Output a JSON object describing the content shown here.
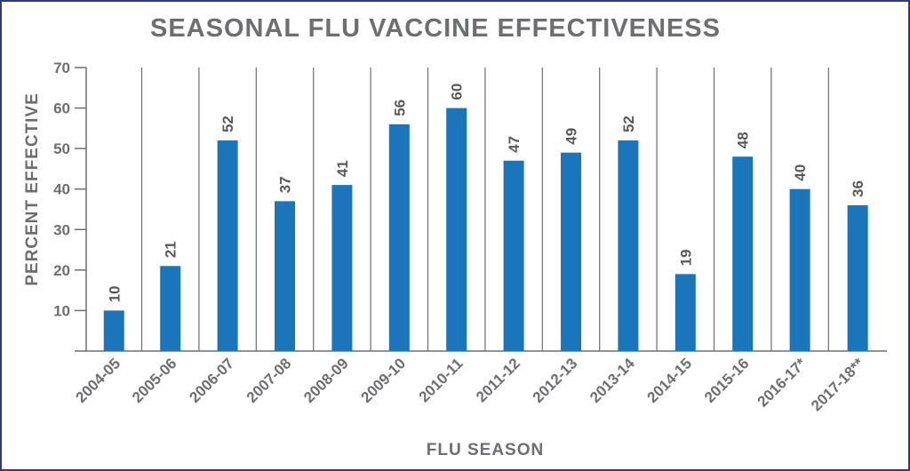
{
  "chart_data": {
    "type": "bar",
    "title": "SEASONAL FLU VACCINE EFFECTIVENESS",
    "xlabel": "FLU SEASON",
    "ylabel": "PERCENT EFFECTIVE",
    "categories": [
      "2004-05",
      "2005-06",
      "2006-07",
      "2007-08",
      "2008-09",
      "2009-10",
      "2010-11",
      "2011-12",
      "2012-13",
      "2013-14",
      "2014-15",
      "2015-16",
      "2016-17*",
      "2017-18**"
    ],
    "values": [
      10,
      21,
      52,
      37,
      41,
      56,
      60,
      47,
      49,
      52,
      19,
      48,
      40,
      36
    ],
    "yticks": [
      10,
      20,
      30,
      40,
      50,
      60,
      70
    ],
    "ylim": [
      0,
      70
    ],
    "grid": "vertical separators between categories",
    "bar_color": "#1b75bb",
    "text_color": "#6d6e71",
    "border_color": "#2c3e73"
  }
}
